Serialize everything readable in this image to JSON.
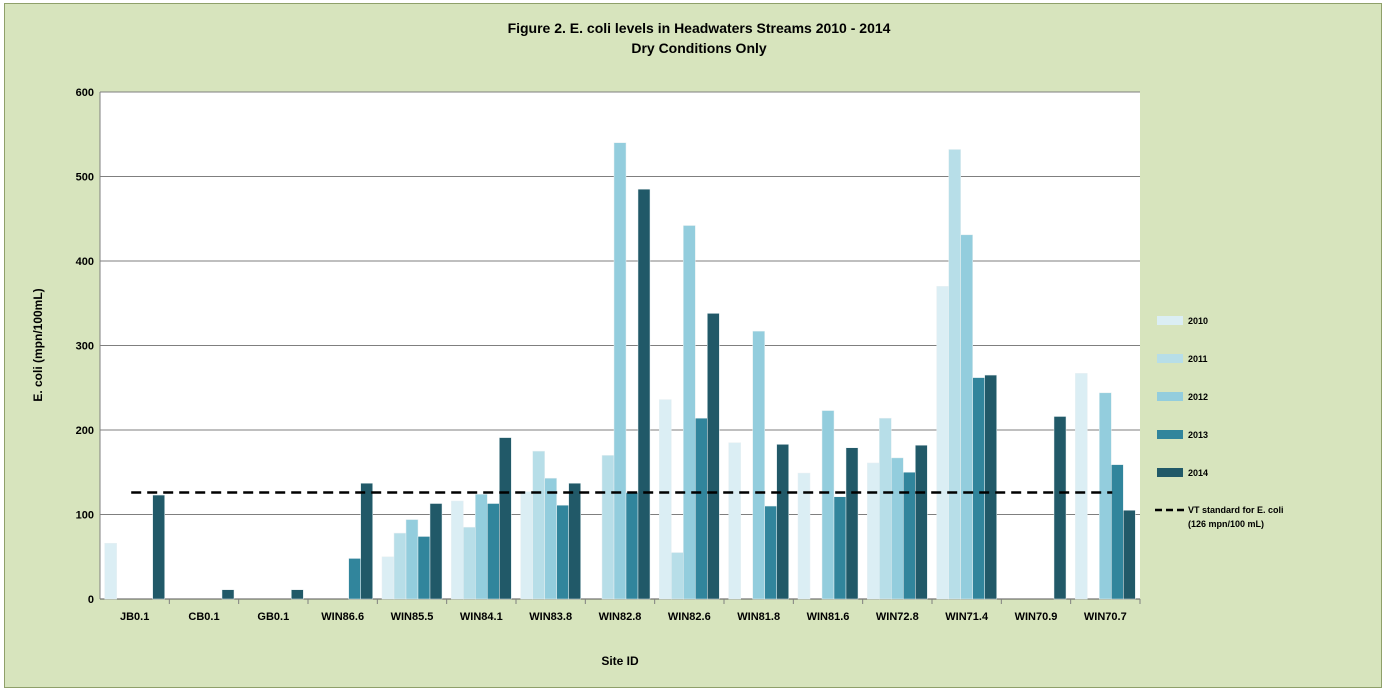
{
  "chart_data": {
    "type": "bar",
    "title_line1": "Figure 2. E. coli levels in Headwaters Streams 2010 - 2014",
    "title_line2": "Dry Conditions Only",
    "xlabel": "Site ID",
    "ylabel": "E. coli (mpn/100mL)",
    "ylim": [
      0,
      600
    ],
    "yticks": [
      0,
      100,
      200,
      300,
      400,
      500,
      600
    ],
    "ytick_labels": [
      "0",
      "100",
      "200",
      "300",
      "400",
      "500",
      "600"
    ],
    "grid": true,
    "legend_position": "right",
    "categories": [
      "JB0.1",
      "CB0.1",
      "GB0.1",
      "WIN86.6",
      "WIN85.5",
      "WIN84.1",
      "WIN83.8",
      "WIN82.8",
      "WIN82.6",
      "WIN81.8",
      "WIN81.6",
      "WIN72.8",
      "WIN71.4",
      "WIN70.9",
      "WIN70.7"
    ],
    "series": [
      {
        "name": "2010",
        "color": "#dbeef4",
        "values": [
          66,
          0,
          0,
          0,
          50,
          116,
          127,
          0,
          236,
          185,
          149,
          161,
          370,
          0,
          267
        ]
      },
      {
        "name": "2011",
        "color": "#b7dee8",
        "values": [
          0,
          0,
          0,
          0,
          78,
          85,
          175,
          170,
          55,
          0,
          0,
          214,
          532,
          0,
          0
        ]
      },
      {
        "name": "2012",
        "color": "#93cddd",
        "values": [
          0,
          0,
          0,
          0,
          94,
          124,
          143,
          540,
          442,
          317,
          223,
          167,
          431,
          0,
          244
        ]
      },
      {
        "name": "2013",
        "color": "#31859c",
        "values": [
          0,
          0,
          0,
          48,
          74,
          113,
          111,
          126,
          214,
          110,
          121,
          150,
          262,
          0,
          159
        ]
      },
      {
        "name": "2014",
        "color": "#215968",
        "values": [
          123,
          11,
          11,
          137,
          113,
          191,
          137,
          485,
          338,
          183,
          179,
          182,
          265,
          216,
          105
        ]
      }
    ],
    "reference_line": {
      "name": "VT standard for E. coli (126 mpn/100 mL)",
      "value": 126,
      "color": "#000000"
    }
  }
}
